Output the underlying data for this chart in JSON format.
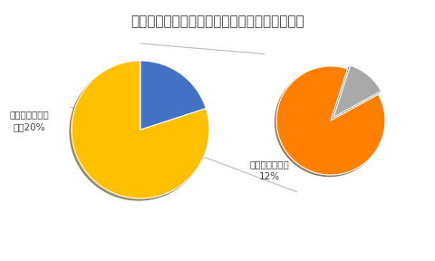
{
  "title": "上下水道局利用者アンケートの満足度調査結果",
  "title_fontsize": 11,
  "pie1": {
    "values": [
      80,
      20
    ],
    "colors": [
      "#FFC000",
      "#4472C4"
    ],
    "startangle": 90
  },
  "pie2": {
    "values": [
      88,
      12
    ],
    "colors": [
      "#FF7F00",
      "#A9A9A9"
    ],
    "startangle": 72,
    "explode": [
      0,
      0.08
    ]
  },
  "connector_color": "#BBBBBB",
  "background_color": "#FFFFFF",
  "font_color": "#404040",
  "label_fontsize": 7.5
}
